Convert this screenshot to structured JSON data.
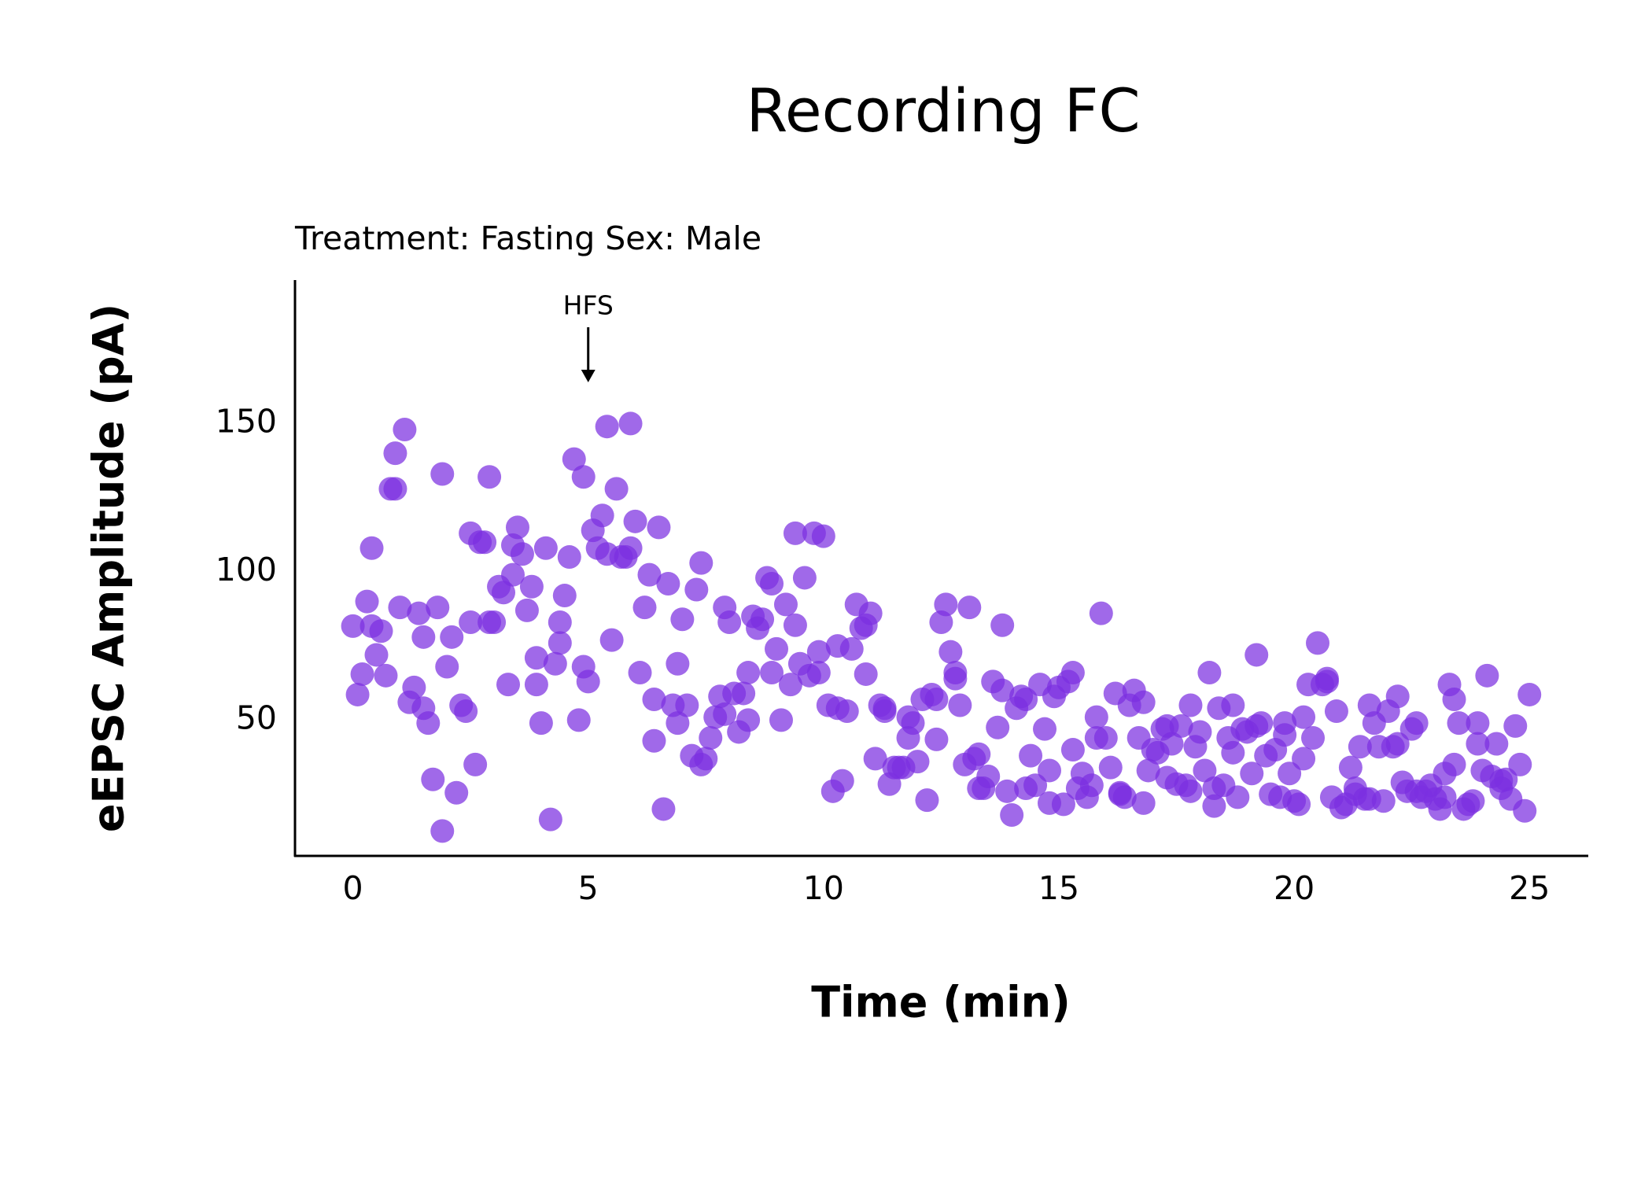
{
  "chart_data": {
    "type": "scatter",
    "title": "Recording FC",
    "subtitle": "Treatment: Fasting  Sex: Male",
    "x_label": "Time (min)",
    "y_label": "eEPSC Amplitude (pA)",
    "annotations": [
      {
        "text": "HFS",
        "x": 5
      }
    ],
    "color": "#7b2fe0",
    "grid": false,
    "xlim": [
      -1.23,
      26.25
    ],
    "ylim": [
      4.2,
      198.4
    ],
    "xticks": [
      0,
      5,
      10,
      15,
      20,
      25
    ],
    "yticks": [
      50,
      100,
      150
    ],
    "x": [
      0,
      0.1,
      0.2,
      0.3,
      0.4,
      0.4,
      0.5,
      0.6,
      0.7,
      0.8,
      0.9,
      0.9,
      1.0,
      1.1,
      1.2,
      1.3,
      1.4,
      1.5,
      1.5,
      1.6,
      1.7,
      1.8,
      1.9,
      1.9,
      2.0,
      2.1,
      2.2,
      2.3,
      2.4,
      2.5,
      2.5,
      2.6,
      2.7,
      2.8,
      2.9,
      2.9,
      3.0,
      3.1,
      3.2,
      3.3,
      3.4,
      3.4,
      3.5,
      3.6,
      3.7,
      3.8,
      3.9,
      3.9,
      4.0,
      4.1,
      4.2,
      4.3,
      4.4,
      4.4,
      4.5,
      4.6,
      4.7,
      4.8,
      4.9,
      4.9,
      5.0,
      5.1,
      5.2,
      5.3,
      5.4,
      5.4,
      5.5,
      5.6,
      5.7,
      5.8,
      5.9,
      5.9,
      6.0,
      6.1,
      6.2,
      6.3,
      6.4,
      6.4,
      6.5,
      6.6,
      6.7,
      6.8,
      6.9,
      6.9,
      7.0,
      7.1,
      7.2,
      7.3,
      7.4,
      7.4,
      7.5,
      7.6,
      7.7,
      7.8,
      7.9,
      7.9,
      8.0,
      8.1,
      8.2,
      8.3,
      8.4,
      8.4,
      8.5,
      8.6,
      8.7,
      8.8,
      8.9,
      8.9,
      9.0,
      9.1,
      9.2,
      9.3,
      9.4,
      9.4,
      9.5,
      9.6,
      9.7,
      9.8,
      9.9,
      9.9,
      10.0,
      10.1,
      10.2,
      10.3,
      10.3,
      10.4,
      10.5,
      10.6,
      10.7,
      10.8,
      10.9,
      10.9,
      11.0,
      11.1,
      11.2,
      11.3,
      11.3,
      11.4,
      11.5,
      11.6,
      11.7,
      11.8,
      11.8,
      11.9,
      12.0,
      12.1,
      12.2,
      12.3,
      12.4,
      12.4,
      12.5,
      12.6,
      12.7,
      12.8,
      12.8,
      12.9,
      13.0,
      13.1,
      13.2,
      13.3,
      13.3,
      13.4,
      13.5,
      13.6,
      13.7,
      13.8,
      13.8,
      13.9,
      14.0,
      14.1,
      14.2,
      14.3,
      14.3,
      14.4,
      14.5,
      14.6,
      14.7,
      14.8,
      14.8,
      14.9,
      15.0,
      15.1,
      15.2,
      15.3,
      15.3,
      15.4,
      15.5,
      15.6,
      15.7,
      15.8,
      15.8,
      15.9,
      16.0,
      16.1,
      16.2,
      16.3,
      16.3,
      16.4,
      16.5,
      16.6,
      16.7,
      16.8,
      16.8,
      16.9,
      17.0,
      17.1,
      17.2,
      17.3,
      17.3,
      17.4,
      17.5,
      17.6,
      17.7,
      17.8,
      17.8,
      17.9,
      18.0,
      18.1,
      18.2,
      18.3,
      18.3,
      18.4,
      18.5,
      18.6,
      18.7,
      18.7,
      18.8,
      18.9,
      19.0,
      19.1,
      19.2,
      19.2,
      19.3,
      19.4,
      19.5,
      19.6,
      19.7,
      19.8,
      19.8,
      19.9,
      20.0,
      20.1,
      20.2,
      20.2,
      20.3,
      20.4,
      20.5,
      20.6,
      20.7,
      20.7,
      20.8,
      20.9,
      21.0,
      21.1,
      21.2,
      21.3,
      21.3,
      21.4,
      21.5,
      21.6,
      21.6,
      21.7,
      21.8,
      21.9,
      22.0,
      22.1,
      22.2,
      22.2,
      22.3,
      22.4,
      22.5,
      22.6,
      22.6,
      22.7,
      22.8,
      22.9,
      23.0,
      23.1,
      23.2,
      23.2,
      23.3,
      23.4,
      23.4,
      23.5,
      23.6,
      23.7,
      23.8,
      23.9,
      23.9,
      24.0,
      24.1,
      24.2,
      24.3,
      24.4,
      24.4,
      24.5,
      24.6,
      24.7,
      24.8,
      24.9,
      25.0
    ],
    "series": [
      {
        "values": [
          81.7,
          58.6,
          65.5,
          90,
          81.7,
          108,
          72,
          80,
          65,
          128,
          140,
          128,
          88,
          148,
          56,
          61,
          86,
          54,
          78,
          49,
          30,
          88,
          12.6,
          133,
          68,
          78,
          25.5,
          55,
          53,
          113,
          83,
          35,
          110,
          110,
          132,
          83,
          83,
          95,
          93,
          62,
          99,
          109,
          115,
          106,
          87,
          95,
          71,
          62,
          49,
          108,
          16.5,
          69,
          76,
          83,
          92,
          105,
          138,
          50,
          68,
          132,
          63,
          114,
          108,
          119,
          149,
          106,
          77,
          128,
          105,
          105,
          108,
          150,
          117,
          66,
          88,
          99,
          43,
          57,
          115,
          20,
          96,
          55,
          69,
          49,
          84,
          55,
          38,
          94,
          103,
          35,
          37,
          44,
          51,
          58,
          88,
          52,
          83,
          59,
          46,
          59,
          50,
          66,
          85,
          81,
          84,
          98,
          66,
          96,
          74,
          50,
          89,
          62,
          82,
          113,
          69,
          98,
          65,
          113,
          73,
          66,
          112,
          55,
          26,
          75,
          54,
          29.5,
          53,
          74,
          89,
          81,
          82,
          65.5,
          86,
          37,
          55,
          54,
          53,
          28.4,
          34,
          34,
          34,
          51,
          44,
          49,
          36,
          57,
          23,
          58.6,
          43.5,
          57,
          83,
          89,
          73,
          64,
          66,
          55,
          35,
          88,
          37,
          38.5,
          27,
          27,
          31,
          63,
          47.5,
          60,
          82,
          26,
          18,
          54,
          58,
          57,
          27,
          38,
          28,
          62,
          47,
          33,
          22,
          58,
          61,
          21.6,
          63,
          66,
          40,
          27,
          32,
          24,
          28,
          44,
          51,
          86,
          44,
          34,
          59,
          25.5,
          25,
          24,
          55,
          60,
          44,
          22,
          56,
          33,
          40,
          39,
          47,
          48,
          30.6,
          42,
          28.4,
          48,
          28,
          26,
          55,
          41,
          46,
          33,
          66,
          21,
          27,
          54,
          28,
          44,
          39,
          55,
          24,
          47,
          46,
          32,
          48,
          72,
          49,
          38,
          25,
          40,
          24,
          45,
          49,
          32,
          22.7,
          21.6,
          51,
          37,
          62,
          44,
          76,
          62,
          63,
          64,
          24,
          53,
          20.5,
          21.6,
          34,
          27,
          25,
          41,
          23.4,
          23.4,
          55,
          49,
          41,
          22.7,
          53,
          41,
          58,
          42,
          29,
          26,
          47,
          26,
          49,
          24,
          26,
          28,
          23.4,
          20,
          24,
          32,
          62,
          57,
          35,
          49,
          20,
          21.6,
          22.7,
          42,
          49,
          33,
          65,
          31,
          42,
          29.5,
          27,
          30,
          23.4,
          48,
          35,
          19.4,
          58.6
        ]
      }
    ]
  }
}
